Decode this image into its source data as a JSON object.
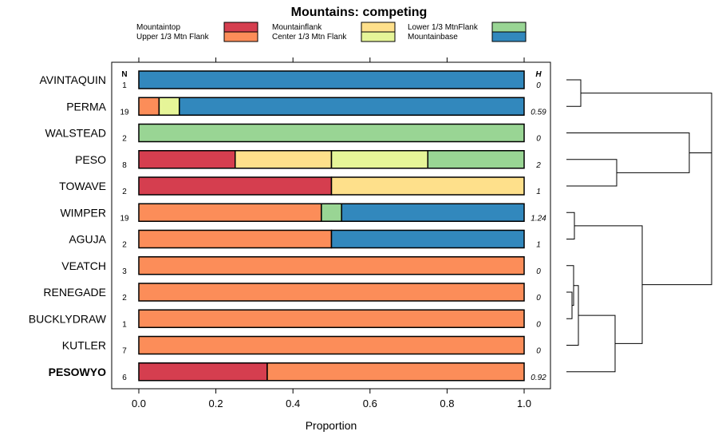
{
  "chart_data": {
    "type": "bar",
    "orientation": "horizontal-stacked",
    "title": "Mountains: competing",
    "xlabel": "Proportion",
    "xlim": [
      0,
      1
    ],
    "xticks": [
      "0.0",
      "0.2",
      "0.4",
      "0.6",
      "0.8",
      "1.0"
    ],
    "n_header": "N",
    "h_header": "H",
    "legend": [
      {
        "name": "Mountaintop",
        "color": "#d53e4f"
      },
      {
        "name": "Upper 1/3 Mtn Flank",
        "color": "#fc8d59"
      },
      {
        "name": "Mountainflank",
        "color": "#fee08b"
      },
      {
        "name": "Center 1/3 Mtn Flank",
        "color": "#e6f598"
      },
      {
        "name": "Lower 1/3 MtnFlank",
        "color": "#99d594"
      },
      {
        "name": "Mountainbase",
        "color": "#3288bd"
      }
    ],
    "categories": [
      "AVINTAQUIN",
      "PERMA",
      "WALSTEAD",
      "PESO",
      "TOWAVE",
      "WIMPER",
      "AGUJA",
      "VEATCH",
      "RENEGADE",
      "BUCKLYDRAW",
      "KUTLER",
      "PESOWYO"
    ],
    "bold_category": "PESOWYO",
    "n": [
      "1",
      "19",
      "2",
      "8",
      "2",
      "19",
      "2",
      "3",
      "2",
      "1",
      "7",
      "6"
    ],
    "h": [
      "0",
      "0.59",
      "0",
      "2",
      "1",
      "1.24",
      "1",
      "0",
      "0",
      "0",
      "0",
      "0.92"
    ],
    "series": [
      {
        "name": "Mountaintop",
        "values": [
          0,
          0,
          0,
          0.25,
          0.5,
          0,
          0,
          0,
          0,
          0,
          0,
          0.3333
        ]
      },
      {
        "name": "Upper 1/3 Mtn Flank",
        "values": [
          0,
          0.0526,
          0,
          0,
          0,
          0.4737,
          0.5,
          1,
          1,
          1,
          1,
          0.6667
        ]
      },
      {
        "name": "Mountainflank",
        "values": [
          0,
          0,
          0,
          0.25,
          0.5,
          0,
          0,
          0,
          0,
          0,
          0,
          0
        ]
      },
      {
        "name": "Center 1/3 Mtn Flank",
        "values": [
          0,
          0.0526,
          0,
          0.25,
          0,
          0,
          0,
          0,
          0,
          0,
          0,
          0
        ]
      },
      {
        "name": "Lower 1/3 MtnFlank",
        "values": [
          0,
          0,
          1,
          0.25,
          0,
          0.0526,
          0,
          0,
          0,
          0,
          0,
          0
        ]
      },
      {
        "name": "Mountainbase",
        "values": [
          1,
          0.8947,
          0,
          0,
          0,
          0.4737,
          0.5,
          0,
          0,
          0,
          0,
          0
        ]
      }
    ]
  }
}
